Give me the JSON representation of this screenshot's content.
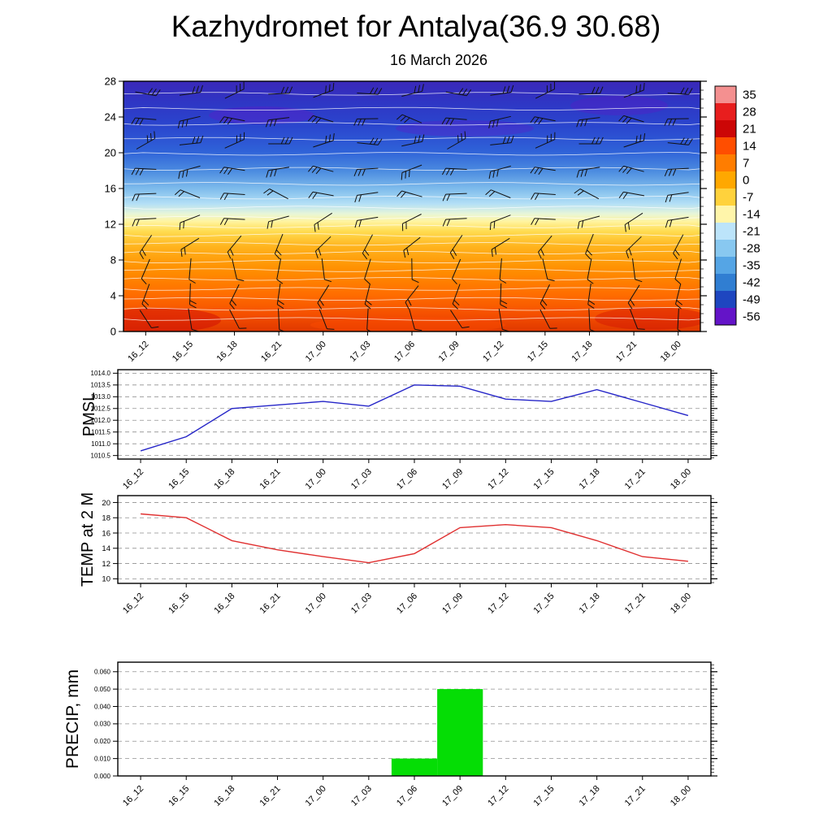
{
  "title": "Kazhydromet for Antalya(36.9 30.68)",
  "subtitle": "16 March 2026",
  "categories": [
    "16_12",
    "16_15",
    "16_18",
    "16_21",
    "17_00",
    "17_03",
    "17_06",
    "17_09",
    "17_12",
    "17_15",
    "17_18",
    "17_21",
    "18_00"
  ],
  "chart_data": [
    {
      "type": "heatmap",
      "name": "temperature-height-cross-section-with-wind-barbs",
      "ylim": [
        0,
        28
      ],
      "y_tick_labels": [
        "0",
        "4",
        "8",
        "12",
        "16",
        "20",
        "24",
        "28"
      ],
      "minor_step": 1,
      "categories": [
        "16_12",
        "16_15",
        "16_18",
        "16_21",
        "17_00",
        "17_03",
        "17_06",
        "17_09",
        "17_12",
        "17_15",
        "17_18",
        "17_21",
        "18_00"
      ],
      "gradient_stops": [
        {
          "offset": "0%",
          "color": "#3A28B8"
        },
        {
          "offset": "8%",
          "color": "#2F35C4"
        },
        {
          "offset": "18%",
          "color": "#2A46CE"
        },
        {
          "offset": "28%",
          "color": "#2F62D8"
        },
        {
          "offset": "36%",
          "color": "#4C8CE0"
        },
        {
          "offset": "43%",
          "color": "#7FBCEC"
        },
        {
          "offset": "49%",
          "color": "#B4E0F6"
        },
        {
          "offset": "53%",
          "color": "#E8F6D8"
        },
        {
          "offset": "56%",
          "color": "#FFF4A0"
        },
        {
          "offset": "60%",
          "color": "#FFDC50"
        },
        {
          "offset": "66%",
          "color": "#FFB41E"
        },
        {
          "offset": "75%",
          "color": "#FF9000"
        },
        {
          "offset": "85%",
          "color": "#FF6E00"
        },
        {
          "offset": "93%",
          "color": "#F55000"
        },
        {
          "offset": "100%",
          "color": "#E03800"
        }
      ],
      "contour_color": "#ffffff",
      "barb_color": "#111111",
      "wind_barbs_rows_angle_deg": [
        8,
        175,
        12,
        183,
        170,
        195,
        230,
        265,
        250,
        285
      ],
      "wind_barbs_rows_ticks": [
        3,
        3,
        3,
        3,
        2,
        2,
        2,
        1,
        2,
        1
      ],
      "colorbar_labels": [
        "35",
        "28",
        "21",
        "14",
        "7",
        "0",
        "-7",
        "-14",
        "-21",
        "-28",
        "-35",
        "-42",
        "-49",
        "-56"
      ],
      "colorbar_colors": [
        "#F49090",
        "#E81E1E",
        "#CC0606",
        "#FF4E00",
        "#FF7D00",
        "#FFA800",
        "#FFD23C",
        "#FFF5AA",
        "#BCE4FA",
        "#88C8F0",
        "#55A5E5",
        "#307ED2",
        "#1E46C0",
        "#6414C8"
      ]
    },
    {
      "type": "line",
      "ylabel": "PMSL",
      "line_color": "#2525C8",
      "y_tick_labels": [
        "1010.5",
        "1011.0",
        "1011.5",
        "1012.0",
        "1012.5",
        "1013.0",
        "1013.5",
        "1014.0"
      ],
      "ylim": [
        1010.35,
        1014.15
      ],
      "minor_step": 0.1,
      "categories": [
        "16_12",
        "16_15",
        "16_18",
        "16_21",
        "17_00",
        "17_03",
        "17_06",
        "17_09",
        "17_12",
        "17_15",
        "17_18",
        "17_21",
        "18_00"
      ],
      "values": [
        1010.7,
        1011.3,
        1012.5,
        1012.65,
        1012.8,
        1012.6,
        1013.5,
        1013.45,
        1012.9,
        1012.8,
        1013.3,
        1012.75,
        1012.2
      ]
    },
    {
      "type": "line",
      "ylabel": "TEMP at 2 M",
      "line_color": "#E03030",
      "y_tick_labels": [
        "10",
        "12",
        "14",
        "16",
        "18",
        "20"
      ],
      "ylim": [
        9.4,
        20.9
      ],
      "minor_step": 0.5,
      "categories": [
        "16_12",
        "16_15",
        "16_18",
        "16_21",
        "17_00",
        "17_03",
        "17_06",
        "17_09",
        "17_12",
        "17_15",
        "17_18",
        "17_21",
        "18_00"
      ],
      "values": [
        18.5,
        18.0,
        15.0,
        13.8,
        12.9,
        12.1,
        13.3,
        16.7,
        17.1,
        16.7,
        15.0,
        12.9,
        12.3
      ]
    },
    {
      "type": "bar",
      "ylabel": "PRECIP, mm",
      "bar_color": "#05DD05",
      "y_tick_labels": [
        "0.000",
        "0.010",
        "0.020",
        "0.030",
        "0.040",
        "0.050",
        "0.060"
      ],
      "ylim": [
        0,
        0.0655
      ],
      "minor_step": 0.002,
      "categories": [
        "16_12",
        "16_15",
        "16_18",
        "16_21",
        "17_00",
        "17_03",
        "17_06",
        "17_09",
        "17_12",
        "17_15",
        "17_18",
        "17_21",
        "18_00"
      ],
      "values": [
        0,
        0,
        0,
        0,
        0,
        0,
        0.01,
        0.05,
        0,
        0,
        0,
        0,
        0
      ]
    }
  ]
}
